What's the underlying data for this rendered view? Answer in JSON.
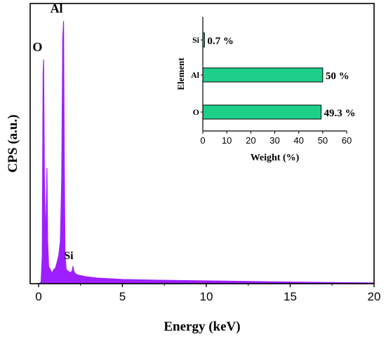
{
  "chart_data": [
    {
      "type": "area",
      "xlabel": "Energy (keV)",
      "ylabel": "CPS (a.u.)",
      "xlim": [
        -0.5,
        20
      ],
      "x_ticks": [
        0,
        5,
        10,
        15,
        20
      ],
      "y_ticks_shown": false,
      "grid": false,
      "series_color": "#9d1fff",
      "series": [
        {
          "x": [
            0.0,
            0.15,
            0.22,
            0.27,
            0.3,
            0.35,
            0.42,
            0.47,
            0.5,
            0.54,
            0.6,
            0.7,
            0.8,
            0.9,
            1.0,
            1.1,
            1.2,
            1.3,
            1.38,
            1.44,
            1.49,
            1.53,
            1.58,
            1.65,
            1.75,
            1.9,
            2.0,
            2.05,
            2.1,
            2.2,
            2.4,
            2.8,
            3.5,
            5.0,
            7.0,
            10.0,
            13.0,
            16.0,
            20.0
          ],
          "y": [
            0,
            2,
            40,
            300,
            320,
            150,
            60,
            120,
            165,
            60,
            25,
            20,
            15,
            20,
            22,
            30,
            40,
            60,
            150,
            350,
            375,
            180,
            40,
            20,
            18,
            16,
            18,
            25,
            18,
            14,
            12,
            10,
            8,
            6,
            5,
            4,
            3,
            2,
            1
          ]
        }
      ],
      "annotations": [
        {
          "text": "O",
          "x": 0.27,
          "y": 320
        },
        {
          "text": "Al",
          "x": 1.49,
          "y": 375
        },
        {
          "text": "Si",
          "x": 2.05,
          "y": 25
        }
      ]
    },
    {
      "type": "bar",
      "orientation": "horizontal",
      "title": "",
      "xlabel": "Weight (%)",
      "ylabel": "Element",
      "categories": [
        "O",
        "Al",
        "Si"
      ],
      "values": [
        49.3,
        50,
        0.7
      ],
      "value_labels": [
        "49.3 %",
        "50 %",
        "0.7 %"
      ],
      "xlim": [
        0,
        60
      ],
      "x_ticks": [
        0,
        10,
        20,
        30,
        40,
        50,
        60
      ],
      "bar_color": "#1ecf8a",
      "bar_edge": "#000000"
    }
  ],
  "tick_labels_main": [
    "0",
    "5",
    "10",
    "15",
    "20"
  ],
  "tick_labels_inset": [
    "0",
    "10",
    "20",
    "30",
    "40",
    "50",
    "60"
  ]
}
